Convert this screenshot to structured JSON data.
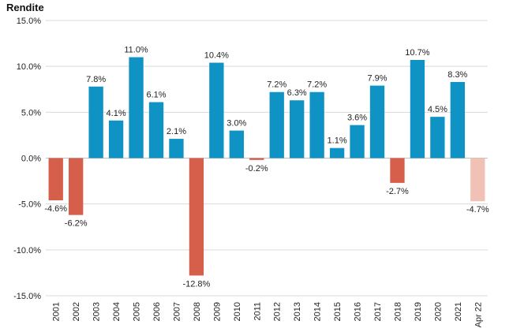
{
  "chart_data": {
    "type": "bar",
    "ylabel": "Rendite",
    "xlabel": "",
    "ylim": [
      -15,
      15
    ],
    "yticks": [
      15,
      10,
      5,
      0,
      -5,
      -10,
      -15
    ],
    "ytick_labels": [
      "15.0%",
      "10.0%",
      "5.0%",
      "0.0%",
      "-5.0%",
      "-10.0%",
      "-15.0%"
    ],
    "grid": "horizontal",
    "legend": "none",
    "categories": [
      "2001",
      "2002",
      "2003",
      "2004",
      "2005",
      "2006",
      "2007",
      "2008",
      "2009",
      "2010",
      "2011",
      "2012",
      "2013",
      "2014",
      "2015",
      "2016",
      "2017",
      "2018",
      "2019",
      "2020",
      "2021",
      "Apr 22"
    ],
    "values": [
      -4.6,
      -6.2,
      7.8,
      4.1,
      11.0,
      6.1,
      2.1,
      -12.8,
      10.4,
      3.0,
      -0.2,
      7.2,
      6.3,
      7.2,
      1.1,
      3.6,
      7.9,
      -2.7,
      10.7,
      4.5,
      8.3,
      -4.7
    ],
    "data_labels": [
      "-4.6%",
      "-6.2%",
      "7.8%",
      "4.1%",
      "11.0%",
      "6.1%",
      "2.1%",
      "-12.8%",
      "10.4%",
      "3.0%",
      "-0.2%",
      "7.2%",
      "6.3%",
      "7.2%",
      "1.1%",
      "3.6%",
      "7.9%",
      "-2.7%",
      "10.7%",
      "4.5%",
      "8.3%",
      "-4.7%"
    ],
    "colors": {
      "positive": "#0f92c4",
      "negative": "#d65f4c",
      "partial_year_negative": "#f1c1b6",
      "grid": "#d9d9d9",
      "zero_line": "#bfbfbf"
    },
    "partial_year_category": "Apr 22"
  }
}
